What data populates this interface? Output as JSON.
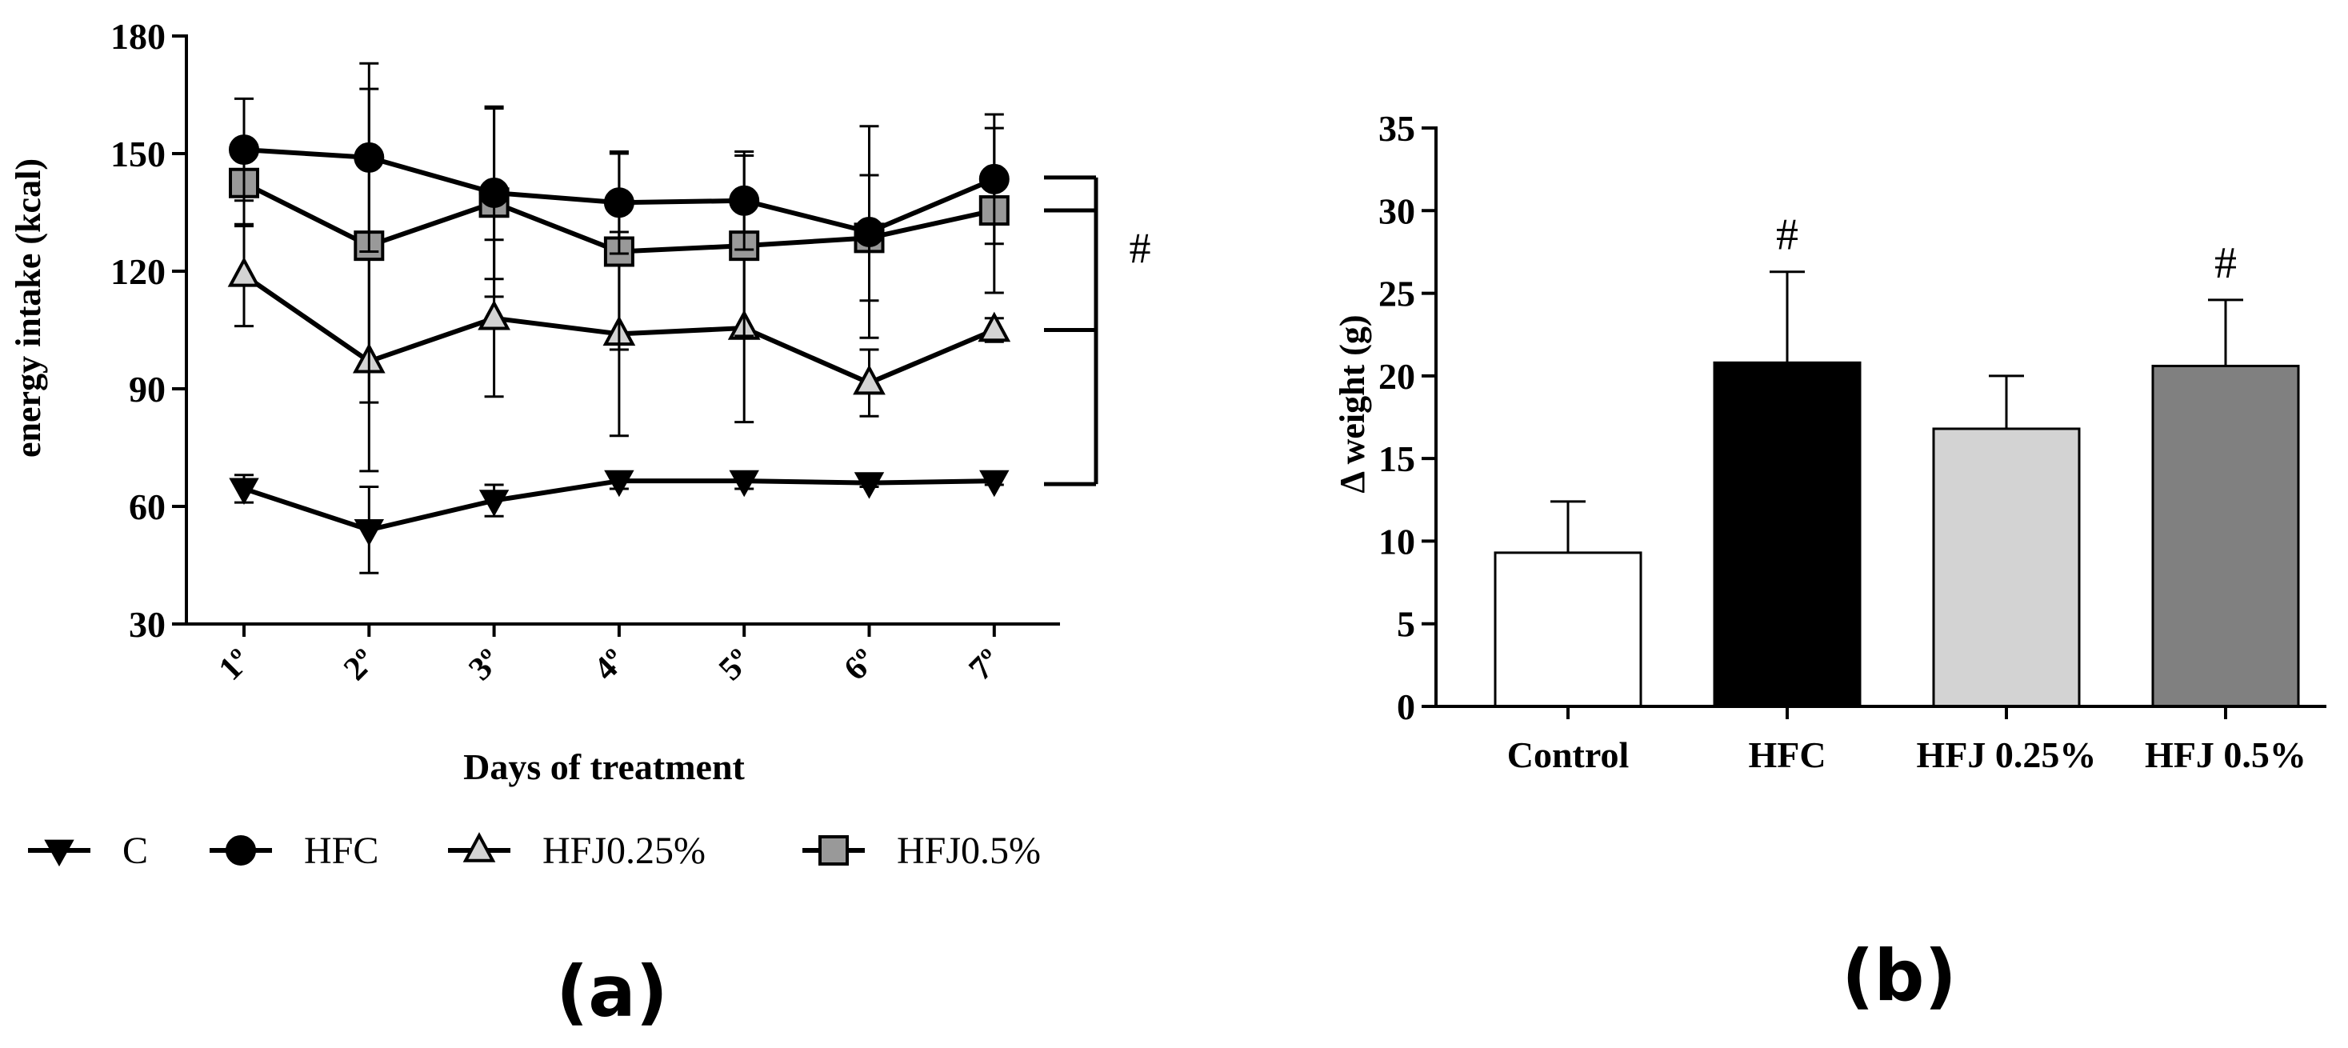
{
  "chart_data": [
    {
      "type": "line",
      "panel_label": "(a)",
      "ylabel": "energy intake (kcal)",
      "xlabel": "Days of treatment",
      "ylim": [
        30,
        180
      ],
      "yticks": [
        "30",
        "60",
        "90",
        "120",
        "150",
        "180"
      ],
      "categories": [
        "1º",
        "2º",
        "3º",
        "4º",
        "5º",
        "6º",
        "7º"
      ],
      "series": [
        {
          "name": "C",
          "marker": "triangle-down",
          "fill": "#000000",
          "values": [
            64.5,
            54,
            61.5,
            66.5,
            66.5,
            66,
            66.5
          ],
          "errors": [
            3.5,
            11,
            4,
            2,
            2,
            1,
            1
          ]
        },
        {
          "name": "HFC",
          "marker": "circle",
          "fill": "#000000",
          "values": [
            151,
            149,
            140,
            137.5,
            138,
            130,
            143.5
          ],
          "errors": [
            13,
            24,
            22,
            13,
            12.5,
            27,
            16.5
          ]
        },
        {
          "name": "HFJ0.25%",
          "marker": "triangle-up",
          "fill": "#d3d3d3",
          "values": [
            119,
            97,
            108,
            104,
            105.5,
            91.5,
            105
          ],
          "errors": [
            13,
            28,
            20,
            26,
            24,
            8.5,
            3
          ]
        },
        {
          "name": "HFJ0.5%",
          "marker": "square",
          "fill": "#999999",
          "values": [
            142.5,
            126.5,
            137.5,
            125,
            126.5,
            128.5,
            135.5
          ],
          "errors": [
            11,
            40,
            24,
            25,
            23,
            16,
            21
          ]
        }
      ],
      "significance_marker": "#"
    },
    {
      "type": "bar",
      "panel_label": "(b)",
      "ylabel": "Δ weight (g)",
      "ylim": [
        0,
        35
      ],
      "yticks": [
        "0",
        "5",
        "10",
        "15",
        "20",
        "25",
        "30",
        "35"
      ],
      "categories": [
        "Control",
        "HFC",
        "HFJ 0.25%",
        "HFJ 0.5%"
      ],
      "values": [
        9.3,
        20.8,
        16.8,
        20.6
      ],
      "errors": [
        3.1,
        5.5,
        3.2,
        4.0
      ],
      "fills": [
        "#ffffff",
        "#000000",
        "#d3d3d3",
        "#808080"
      ],
      "annotations": [
        "",
        "#",
        "",
        "#"
      ]
    }
  ]
}
